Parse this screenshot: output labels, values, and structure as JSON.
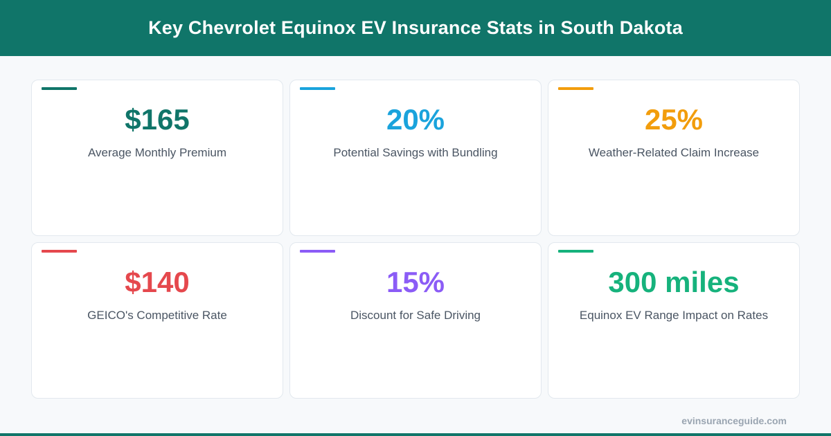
{
  "header": {
    "title": "Key Chevrolet Equinox EV Insurance Stats in South Dakota",
    "background_color": "#107569"
  },
  "stats": [
    {
      "value": "$165",
      "label": "Average Monthly Premium",
      "color": "#107569"
    },
    {
      "value": "20%",
      "label": "Potential Savings with Bundling",
      "color": "#1aa3dc"
    },
    {
      "value": "25%",
      "label": "Weather-Related Claim Increase",
      "color": "#f29d0c"
    },
    {
      "value": "$140",
      "label": "GEICO's Competitive Rate",
      "color": "#e5484d"
    },
    {
      "value": "15%",
      "label": "Discount for Safe Driving",
      "color": "#8b5cf6"
    },
    {
      "value": "300 miles",
      "label": "Equinox EV Range Impact on Rates",
      "color": "#16b27c"
    }
  ],
  "footer": {
    "site": "evinsuranceguide.com"
  }
}
